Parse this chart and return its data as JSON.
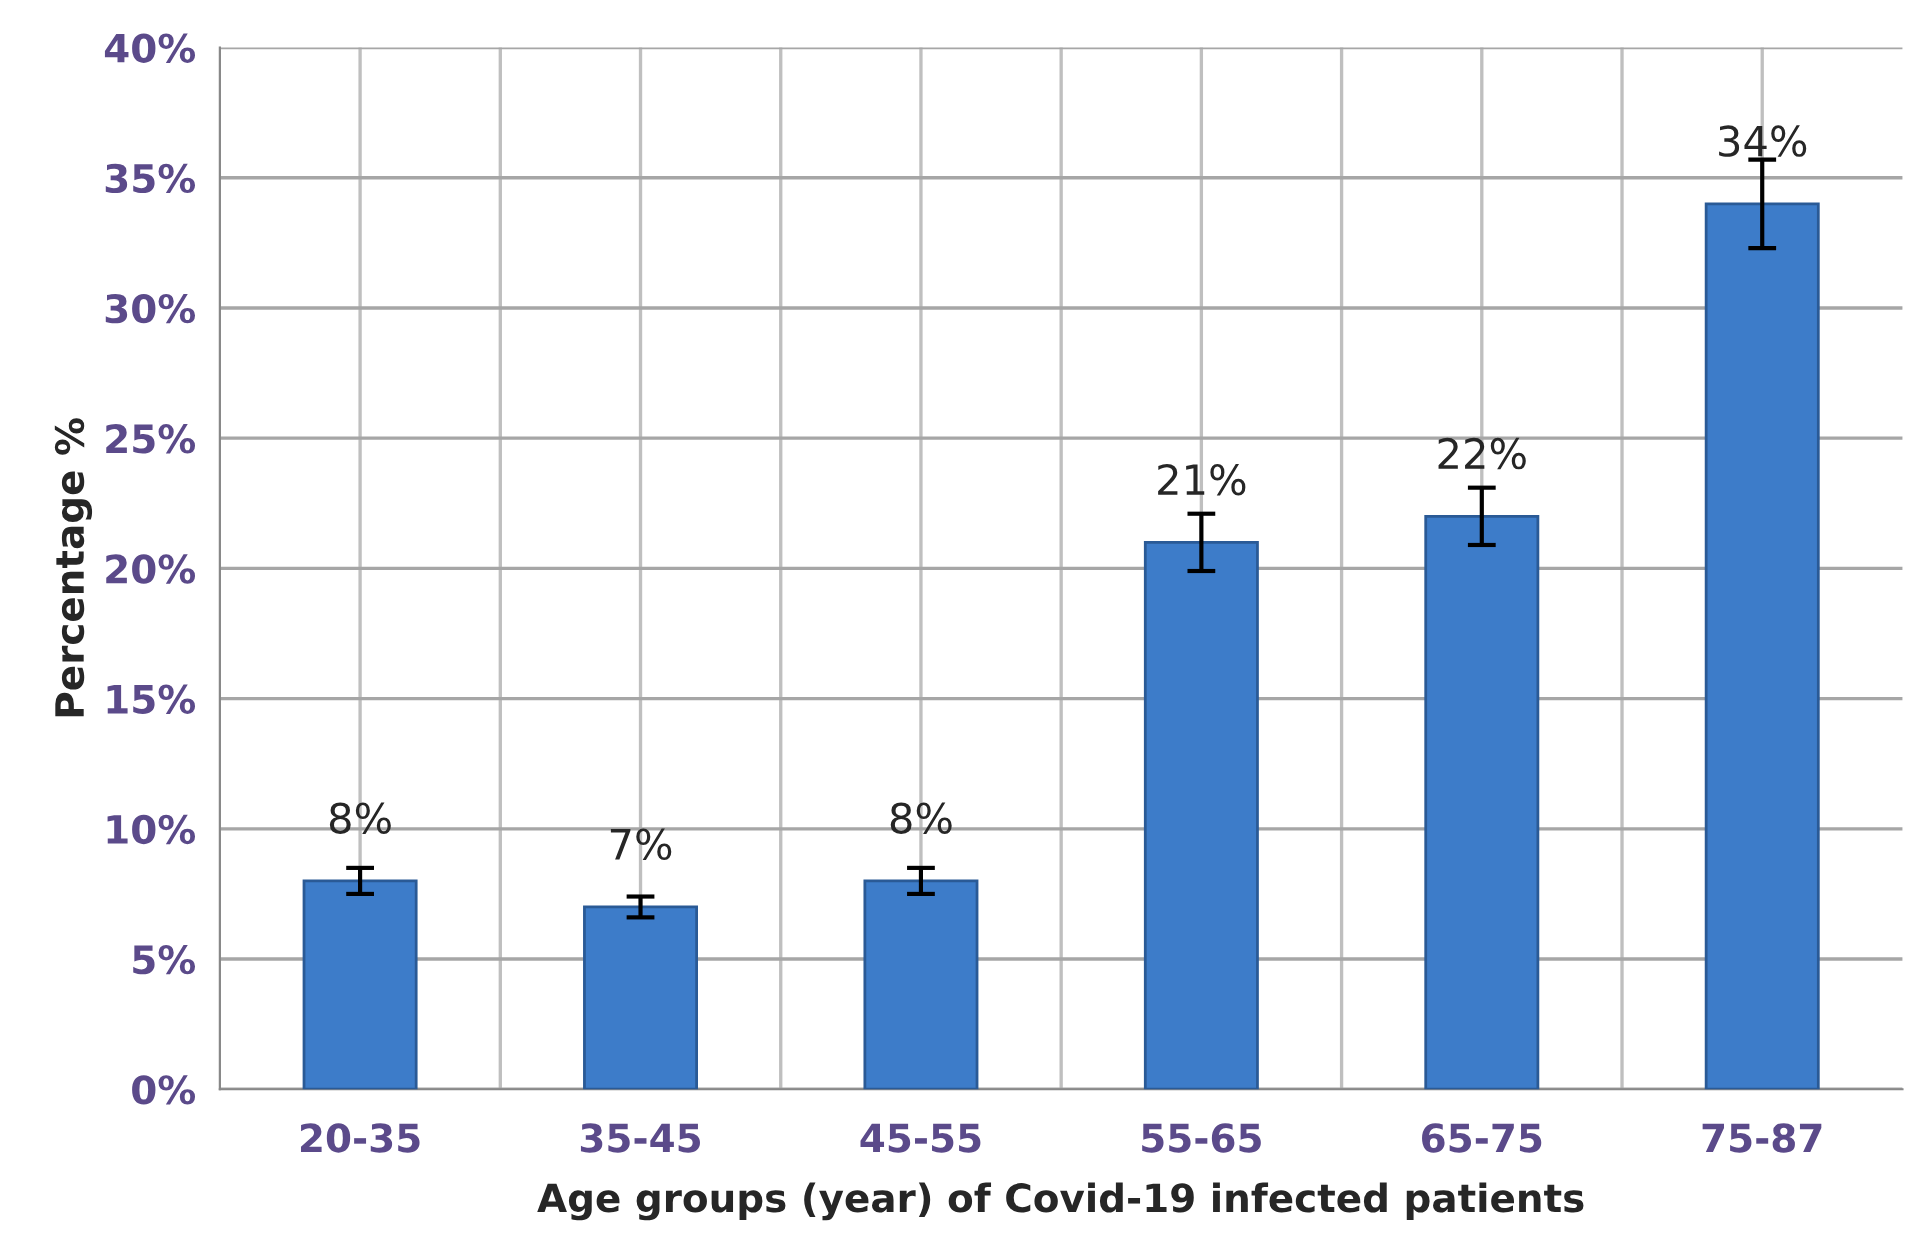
{
  "chart_data": {
    "type": "bar",
    "xlabel": "Age groups (year) of Covid-19 infected patients",
    "ylabel": "Percentage %",
    "categories": [
      "20-35",
      "35-45",
      "45-55",
      "55-65",
      "65-75",
      "75-87"
    ],
    "values": [
      8,
      7,
      8,
      21,
      22,
      34
    ],
    "errors": [
      0.5,
      0.4,
      0.5,
      1.1,
      1.1,
      1.7
    ],
    "color": "#3d7cc9",
    "value_labels": [
      "8%",
      "7%",
      "8%",
      "21%",
      "22%",
      "34%"
    ],
    "ylim": [
      0,
      40
    ],
    "yticks": [
      {
        "value": 0,
        "label": "0%"
      },
      {
        "value": 5,
        "label": "5%"
      },
      {
        "value": 10,
        "label": "10%"
      },
      {
        "value": 15,
        "label": "15%"
      },
      {
        "value": 20,
        "label": "20%"
      },
      {
        "value": 25,
        "label": "25%"
      },
      {
        "value": 30,
        "label": "30%"
      },
      {
        "value": 35,
        "label": "35%"
      },
      {
        "value": 40,
        "label": "40%"
      }
    ],
    "grid": true
  }
}
